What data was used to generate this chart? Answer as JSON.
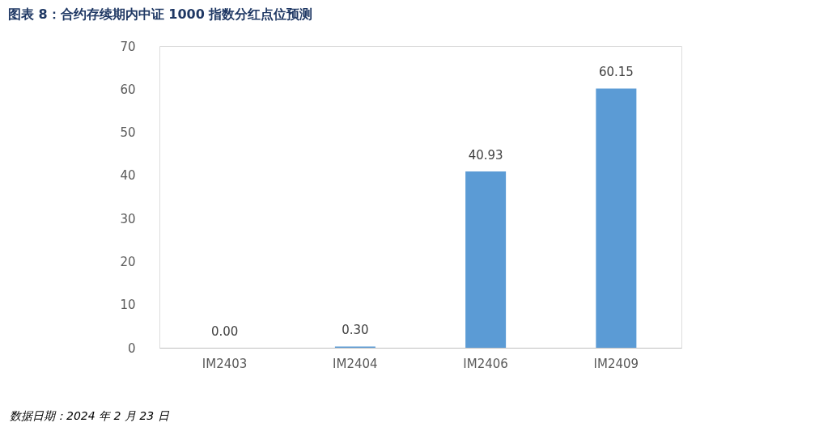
{
  "chart_data": {
    "type": "bar",
    "title": "图表 8：合约存续期内中证 1000 指数分红点位预测",
    "categories": [
      "IM2403",
      "IM2404",
      "IM2406",
      "IM2409"
    ],
    "values": [
      0.0,
      0.3,
      40.93,
      60.15
    ],
    "value_labels": [
      "0.00",
      "0.30",
      "40.93",
      "60.15"
    ],
    "color": "#5b9bd5",
    "ylim": [
      0,
      70
    ],
    "yticks": [
      0,
      10,
      20,
      30,
      40,
      50,
      60,
      70
    ],
    "grid": false,
    "annotations": [
      "数据日期：2024 年 2 月 23 日"
    ]
  }
}
